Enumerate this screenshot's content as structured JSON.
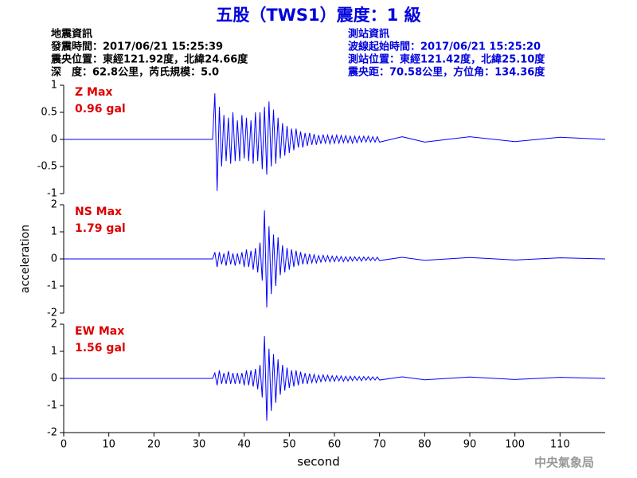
{
  "header": {
    "title": "五股（TWS1）震度：1 級",
    "left": [
      "地震資訊",
      "發震時間：2017/06/21 15:25:39",
      "震央位置：東經121.92度，北緯24.66度",
      "深　度：62.8公里，芮氏規模：5.0"
    ],
    "right": [
      "測站資訊",
      "波線起始時間：2017/06/21 15:25:20",
      "測站位置：東經121.42度，北緯25.10度",
      "震央距：70.58公里，方位角：134.36度"
    ],
    "footer": "中央氣象局"
  },
  "chart_data": [
    {
      "type": "line",
      "annotations": [
        "Z Max",
        "0.96 gal"
      ],
      "x": [
        0,
        33,
        33.5,
        34,
        34.5,
        35,
        35.5,
        36,
        36.5,
        37,
        37.5,
        38,
        38.5,
        39,
        39.5,
        40,
        40.5,
        41,
        41.5,
        42,
        42.5,
        43,
        43.5,
        44,
        44.5,
        45,
        45.5,
        46,
        46.5,
        47,
        47.5,
        48,
        48.5,
        49,
        49.5,
        50,
        50.5,
        51,
        51.5,
        52,
        52.5,
        53,
        53.5,
        54,
        54.5,
        55,
        55.5,
        56,
        56.5,
        57,
        57.5,
        58,
        58.5,
        59,
        59.5,
        60,
        60.5,
        61,
        61.5,
        62,
        62.5,
        63,
        63.5,
        64,
        64.5,
        65,
        65.5,
        66,
        66.5,
        67,
        67.5,
        68,
        68.5,
        69,
        69.5,
        70,
        75,
        80,
        90,
        100,
        110,
        120
      ],
      "series": [
        {
          "color": "#0000ff",
          "values": [
            0,
            0,
            0.85,
            -0.95,
            0.6,
            -0.5,
            0.45,
            -0.4,
            0.4,
            -0.45,
            0.5,
            -0.4,
            0.35,
            -0.4,
            0.45,
            -0.35,
            0.4,
            -0.4,
            0.35,
            -0.45,
            0.5,
            -0.4,
            0.5,
            -0.55,
            0.6,
            -0.65,
            0.7,
            -0.5,
            0.55,
            -0.45,
            0.4,
            -0.35,
            0.3,
            -0.3,
            0.25,
            -0.25,
            0.2,
            -0.2,
            0.2,
            -0.15,
            0.15,
            -0.15,
            0.12,
            -0.12,
            0.12,
            -0.1,
            0.1,
            -0.1,
            0.08,
            -0.08,
            0.09,
            -0.07,
            0.08,
            -0.08,
            0.07,
            -0.07,
            0.08,
            -0.07,
            0.07,
            -0.06,
            0.07,
            -0.06,
            0.06,
            -0.07,
            0.06,
            -0.06,
            0.06,
            -0.05,
            0.06,
            -0.05,
            0.06,
            -0.05,
            0.05,
            -0.05,
            0.05,
            -0.05,
            0.05,
            -0.05,
            0.05,
            -0.04,
            0.04,
            0
          ]
        }
      ],
      "xlim": [
        0,
        120
      ],
      "ylim": [
        -1,
        1
      ],
      "yticks": [
        -1,
        -0.5,
        0,
        0.5,
        1
      ]
    },
    {
      "type": "line",
      "annotations": [
        "NS Max",
        "1.79 gal"
      ],
      "ylabel": "acceleration",
      "x": [
        0,
        33,
        33.5,
        34,
        34.5,
        35,
        35.5,
        36,
        36.5,
        37,
        37.5,
        38,
        38.5,
        39,
        39.5,
        40,
        40.5,
        41,
        41.5,
        42,
        42.5,
        43,
        43.5,
        44,
        44.5,
        45,
        45.5,
        46,
        46.5,
        47,
        47.5,
        48,
        48.5,
        49,
        49.5,
        50,
        50.5,
        51,
        51.5,
        52,
        52.5,
        53,
        53.5,
        54,
        54.5,
        55,
        55.5,
        56,
        56.5,
        57,
        57.5,
        58,
        58.5,
        59,
        59.5,
        60,
        60.5,
        61,
        61.5,
        62,
        62.5,
        63,
        63.5,
        64,
        64.5,
        65,
        65.5,
        66,
        66.5,
        67,
        67.5,
        68,
        68.5,
        69,
        69.5,
        70,
        75,
        80,
        90,
        100,
        110,
        120
      ],
      "series": [
        {
          "color": "#0000ff",
          "values": [
            0,
            0,
            0.25,
            -0.3,
            0.25,
            -0.2,
            0.2,
            -0.25,
            0.3,
            -0.2,
            0.2,
            -0.25,
            0.2,
            -0.2,
            0.25,
            -0.3,
            0.35,
            -0.3,
            0.3,
            -0.4,
            0.4,
            -0.5,
            0.6,
            -0.8,
            1.79,
            -1.79,
            1.2,
            -1.3,
            0.9,
            -1.0,
            0.8,
            -0.6,
            0.5,
            -0.5,
            0.4,
            -0.4,
            0.35,
            -0.3,
            0.3,
            -0.25,
            0.25,
            -0.2,
            0.2,
            -0.2,
            0.18,
            -0.15,
            0.15,
            -0.15,
            0.12,
            -0.12,
            0.13,
            -0.1,
            0.12,
            -0.11,
            0.1,
            -0.1,
            0.1,
            -0.09,
            0.09,
            -0.1,
            0.08,
            -0.09,
            0.08,
            -0.08,
            0.08,
            -0.07,
            0.07,
            -0.08,
            0.07,
            -0.06,
            0.07,
            -0.06,
            0.06,
            -0.06,
            0.06,
            -0.06,
            0.06,
            -0.05,
            0.05,
            -0.04,
            0.04,
            0
          ]
        }
      ],
      "xlim": [
        0,
        120
      ],
      "ylim": [
        -2,
        2
      ],
      "yticks": [
        -2,
        -1,
        0,
        1,
        2
      ]
    },
    {
      "type": "line",
      "annotations": [
        "EW Max",
        "1.56 gal"
      ],
      "xlabel": "second",
      "x": [
        0,
        33,
        33.5,
        34,
        34.5,
        35,
        35.5,
        36,
        36.5,
        37,
        37.5,
        38,
        38.5,
        39,
        39.5,
        40,
        40.5,
        41,
        41.5,
        42,
        42.5,
        43,
        43.5,
        44,
        44.5,
        45,
        45.5,
        46,
        46.5,
        47,
        47.5,
        48,
        48.5,
        49,
        49.5,
        50,
        50.5,
        51,
        51.5,
        52,
        52.5,
        53,
        53.5,
        54,
        54.5,
        55,
        55.5,
        56,
        56.5,
        57,
        57.5,
        58,
        58.5,
        59,
        59.5,
        60,
        60.5,
        61,
        61.5,
        62,
        62.5,
        63,
        63.5,
        64,
        64.5,
        65,
        65.5,
        66,
        66.5,
        67,
        67.5,
        68,
        68.5,
        69,
        69.5,
        70,
        75,
        80,
        90,
        100,
        110,
        120
      ],
      "series": [
        {
          "color": "#0000ff",
          "values": [
            0,
            0,
            0.2,
            -0.25,
            0.3,
            -0.2,
            0.2,
            -0.2,
            0.25,
            -0.2,
            0.2,
            -0.2,
            0.2,
            -0.2,
            0.2,
            -0.25,
            0.3,
            -0.25,
            0.3,
            -0.3,
            0.35,
            -0.4,
            0.5,
            -0.7,
            1.56,
            -1.56,
            1.1,
            -1.2,
            0.9,
            -0.9,
            0.7,
            -0.6,
            0.5,
            -0.45,
            0.4,
            -0.35,
            0.3,
            -0.3,
            0.3,
            -0.25,
            0.25,
            -0.2,
            0.2,
            -0.2,
            0.18,
            -0.15,
            0.15,
            -0.15,
            0.12,
            -0.12,
            0.13,
            -0.1,
            0.12,
            -0.11,
            0.1,
            -0.1,
            0.1,
            -0.09,
            0.09,
            -0.1,
            0.08,
            -0.09,
            0.08,
            -0.08,
            0.08,
            -0.07,
            0.07,
            -0.08,
            0.07,
            -0.06,
            0.07,
            -0.06,
            0.06,
            -0.06,
            0.06,
            -0.06,
            0.06,
            -0.05,
            0.05,
            -0.04,
            0.04,
            0
          ]
        }
      ],
      "xlim": [
        0,
        120
      ],
      "ylim": [
        -2,
        2
      ],
      "yticks": [
        -2,
        -1,
        0,
        1,
        2
      ],
      "xticks": [
        0,
        10,
        20,
        30,
        40,
        50,
        60,
        70,
        80,
        90,
        100,
        110
      ]
    }
  ]
}
